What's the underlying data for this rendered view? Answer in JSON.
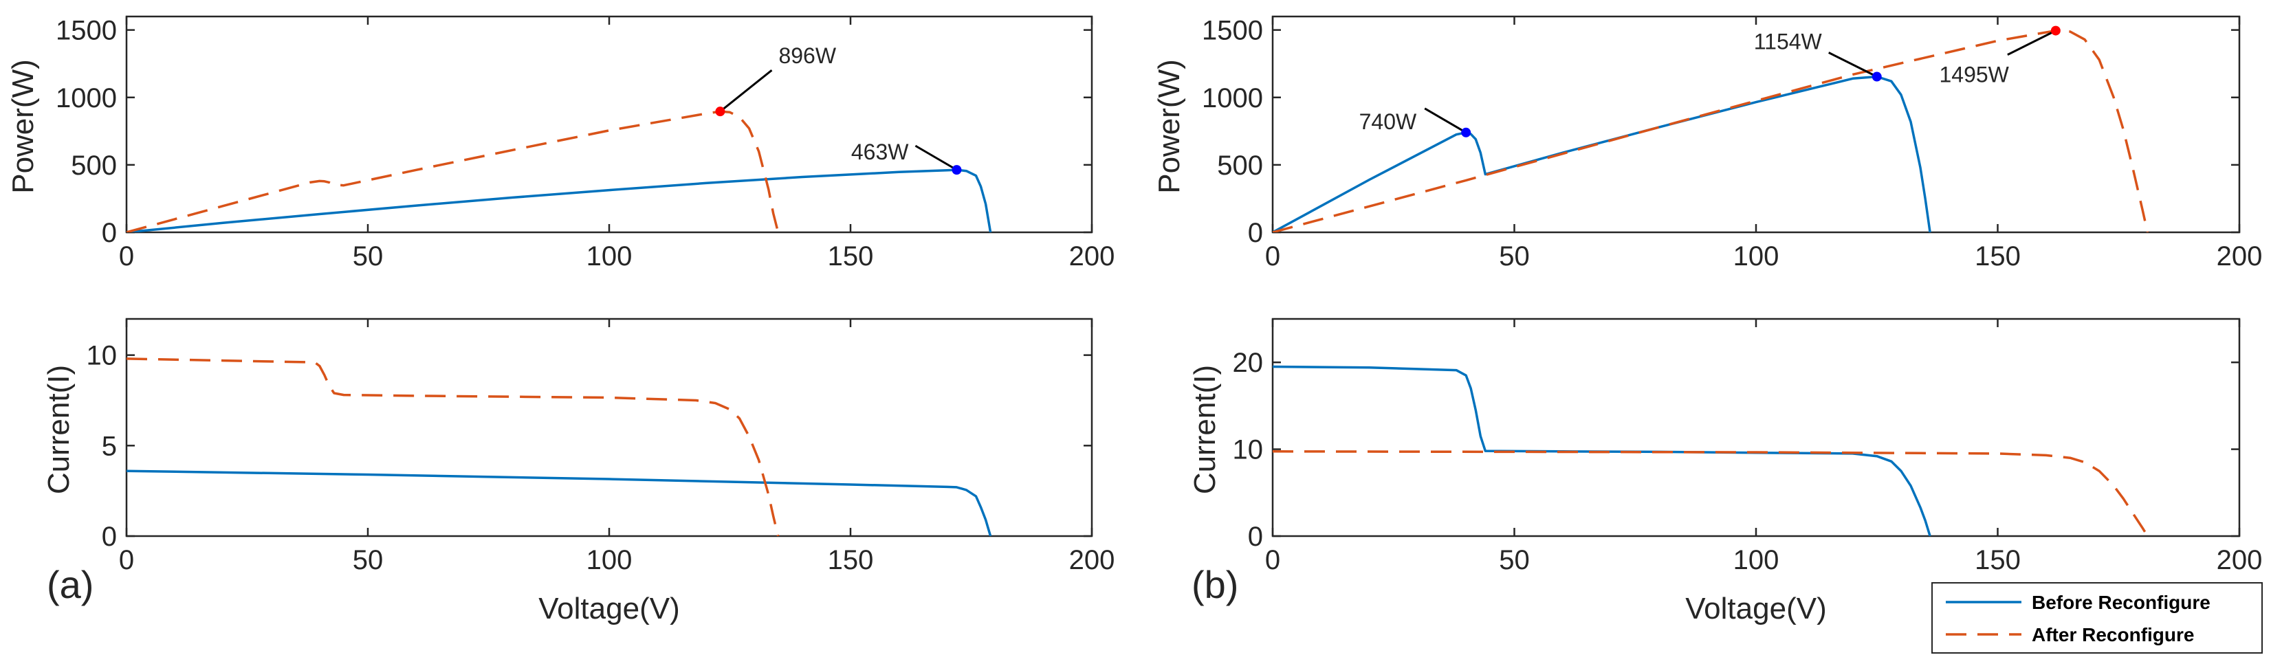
{
  "chart_data": {
    "colors": {
      "before": "#0072BD",
      "after": "#D95319",
      "before_marker": "#0000FF",
      "after_marker": "#FF0000"
    },
    "legend": {
      "position": "bottom-right",
      "entries": [
        "Before Reconfigure",
        "After Reconfigure"
      ]
    },
    "panel_labels": [
      "(a)",
      "(b)"
    ],
    "shared_xlabel": "Voltage(V)",
    "subplots": [
      {
        "id": "a-power",
        "type": "line",
        "panel": "(a)",
        "ylabel": "Power(W)",
        "xlim": [
          0,
          200
        ],
        "ylim": [
          0,
          1600
        ],
        "xticks": [
          0,
          50,
          100,
          150,
          200
        ],
        "yticks": [
          0,
          500,
          1000,
          1500
        ],
        "series": [
          {
            "name": "Before Reconfigure",
            "x": [
              0,
              20,
              40,
              60,
              80,
              100,
              120,
              140,
              160,
              170,
              172,
              174,
              176,
              177,
              178,
              179
            ],
            "y": [
              0,
              70,
              135,
              198,
              258,
              313,
              365,
              410,
              447,
              460,
              463,
              455,
              420,
              340,
              210,
              0
            ]
          },
          {
            "name": "After Reconfigure",
            "x": [
              0,
              20,
              38,
              40,
              41,
              42,
              43,
              45,
              60,
              80,
              100,
              120,
              123,
              125,
              127,
              129,
              131,
              133,
              134,
              135
            ],
            "y": [
              0,
              195,
              370,
              380,
              378,
              370,
              352,
              348,
              462,
              610,
              755,
              880,
              896,
              890,
              855,
              770,
              600,
              320,
              140,
              0
            ]
          }
        ],
        "annotations": [
          {
            "text": "896W",
            "x": 123,
            "y": 896,
            "series": "After Reconfigure"
          },
          {
            "text": "463W",
            "x": 172,
            "y": 463,
            "series": "Before Reconfigure"
          }
        ]
      },
      {
        "id": "a-current",
        "type": "line",
        "panel": "(a)",
        "ylabel": "Current(I)",
        "xlim": [
          0,
          200
        ],
        "ylim": [
          0,
          12
        ],
        "xticks": [
          0,
          50,
          100,
          150,
          200
        ],
        "yticks": [
          0,
          5,
          10
        ],
        "series": [
          {
            "name": "Before Reconfigure",
            "x": [
              0,
              50,
              100,
              150,
              170,
              172,
              174,
              176,
              177,
              178,
              179
            ],
            "y": [
              3.6,
              3.4,
              3.15,
              2.85,
              2.72,
              2.7,
              2.55,
              2.2,
              1.6,
              0.9,
              0
            ]
          },
          {
            "name": "After Reconfigure",
            "x": [
              0,
              20,
              39,
              40,
              41,
              42,
              43,
              45,
              60,
              80,
              100,
              118,
              122,
              125,
              127,
              129,
              131,
              133,
              134,
              135
            ],
            "y": [
              9.8,
              9.7,
              9.6,
              9.4,
              8.9,
              8.3,
              7.9,
              7.8,
              7.75,
              7.7,
              7.65,
              7.5,
              7.35,
              7.0,
              6.5,
              5.5,
              4.2,
              2.3,
              1.1,
              0
            ]
          }
        ]
      },
      {
        "id": "b-power",
        "type": "line",
        "panel": "(b)",
        "ylabel": "Power(W)",
        "xlim": [
          0,
          200
        ],
        "ylim": [
          0,
          1600
        ],
        "xticks": [
          0,
          50,
          100,
          150,
          200
        ],
        "yticks": [
          0,
          500,
          1000,
          1500
        ],
        "series": [
          {
            "name": "Before Reconfigure",
            "x": [
              0,
              20,
              38,
              40,
              41,
              42,
              43,
              44,
              60,
              80,
              100,
              120,
              125,
              128,
              130,
              132,
              134,
              135,
              136
            ],
            "y": [
              0,
              390,
              725,
              740,
              728,
              690,
              590,
              430,
              590,
              780,
              965,
              1140,
              1154,
              1120,
              1020,
              820,
              480,
              250,
              0
            ]
          },
          {
            "name": "After Reconfigure",
            "x": [
              0,
              40,
              80,
              120,
              150,
              162,
              165,
              168,
              171,
              174,
              176,
              178,
              180,
              181
            ],
            "y": [
              0,
              385,
              780,
              1170,
              1420,
              1495,
              1488,
              1430,
              1280,
              1000,
              760,
              470,
              160,
              0
            ]
          }
        ],
        "annotations": [
          {
            "text": "740W",
            "x": 40,
            "y": 740,
            "series": "Before Reconfigure"
          },
          {
            "text": "1154W",
            "x": 125,
            "y": 1154,
            "series": "Before Reconfigure"
          },
          {
            "text": "1495W",
            "x": 162,
            "y": 1495,
            "series": "After Reconfigure"
          }
        ]
      },
      {
        "id": "b-current",
        "type": "line",
        "panel": "(b)",
        "ylabel": "Current(I)",
        "xlim": [
          0,
          200
        ],
        "ylim": [
          0,
          25
        ],
        "xticks": [
          0,
          50,
          100,
          150,
          200
        ],
        "yticks": [
          0,
          10,
          20
        ],
        "series": [
          {
            "name": "Before Reconfigure",
            "x": [
              0,
              20,
              38,
              40,
              41,
              42,
              43,
              44,
              60,
              80,
              100,
              120,
              125,
              128,
              130,
              132,
              134,
              135,
              136
            ],
            "y": [
              19.5,
              19.4,
              19.1,
              18.5,
              17.0,
              14.5,
              11.5,
              9.8,
              9.75,
              9.7,
              9.6,
              9.5,
              9.2,
              8.6,
              7.5,
              5.8,
              3.3,
              1.8,
              0
            ]
          },
          {
            "name": "After Reconfigure",
            "x": [
              0,
              50,
              100,
              150,
              160,
              165,
              168,
              171,
              174,
              176,
              178,
              180,
              181
            ],
            "y": [
              9.75,
              9.7,
              9.65,
              9.5,
              9.3,
              9.0,
              8.5,
              7.5,
              5.8,
              4.3,
              2.6,
              0.9,
              0
            ]
          }
        ]
      }
    ]
  }
}
